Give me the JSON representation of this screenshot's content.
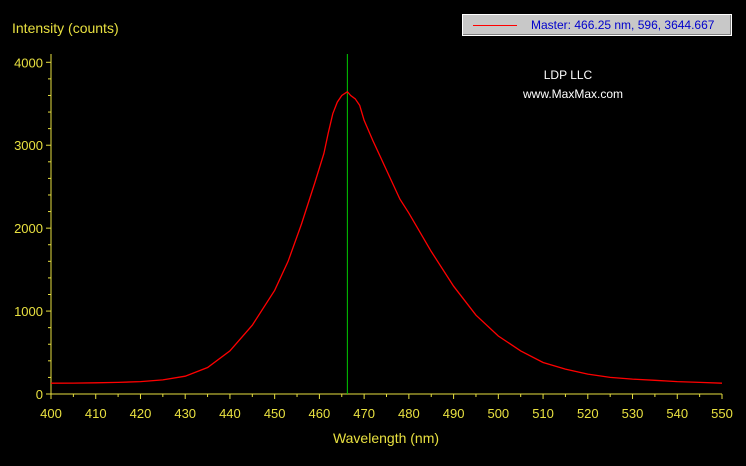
{
  "chart_data": {
    "type": "line",
    "ylabel": "Intensity (counts)",
    "xlabel": "Wavelength (nm)",
    "xlim": [
      400,
      550
    ],
    "ylim": [
      0,
      4100
    ],
    "x_ticks": [
      400,
      410,
      420,
      430,
      440,
      450,
      460,
      470,
      480,
      490,
      500,
      510,
      520,
      530,
      540,
      550
    ],
    "y_ticks": [
      0,
      1000,
      2000,
      3000,
      4000
    ],
    "annotations": [
      "LDP LLC",
      "www.MaxMax.com"
    ],
    "legend": {
      "position": "top-right",
      "label": "Master: 466.25 nm, 596, 3644.667"
    },
    "cursor_x": 466.25,
    "colors": {
      "series": "#ff0000",
      "cursor": "#00cc00",
      "axis": "#e8e040"
    },
    "series": [
      {
        "values": [
          [
            400,
            130
          ],
          [
            405,
            132
          ],
          [
            410,
            135
          ],
          [
            415,
            140
          ],
          [
            420,
            150
          ],
          [
            425,
            170
          ],
          [
            430,
            215
          ],
          [
            435,
            320
          ],
          [
            440,
            520
          ],
          [
            445,
            830
          ],
          [
            450,
            1250
          ],
          [
            453,
            1600
          ],
          [
            456,
            2050
          ],
          [
            459,
            2550
          ],
          [
            461,
            2900
          ],
          [
            462,
            3150
          ],
          [
            463,
            3380
          ],
          [
            464,
            3520
          ],
          [
            465,
            3600
          ],
          [
            466.25,
            3645
          ],
          [
            467,
            3600
          ],
          [
            468,
            3560
          ],
          [
            469,
            3480
          ],
          [
            470,
            3300
          ],
          [
            472,
            3050
          ],
          [
            475,
            2700
          ],
          [
            478,
            2350
          ],
          [
            480,
            2180
          ],
          [
            485,
            1720
          ],
          [
            490,
            1300
          ],
          [
            495,
            950
          ],
          [
            500,
            700
          ],
          [
            505,
            520
          ],
          [
            510,
            380
          ],
          [
            515,
            300
          ],
          [
            520,
            240
          ],
          [
            525,
            200
          ],
          [
            530,
            180
          ],
          [
            535,
            165
          ],
          [
            540,
            150
          ],
          [
            545,
            140
          ],
          [
            550,
            130
          ]
        ]
      }
    ]
  }
}
